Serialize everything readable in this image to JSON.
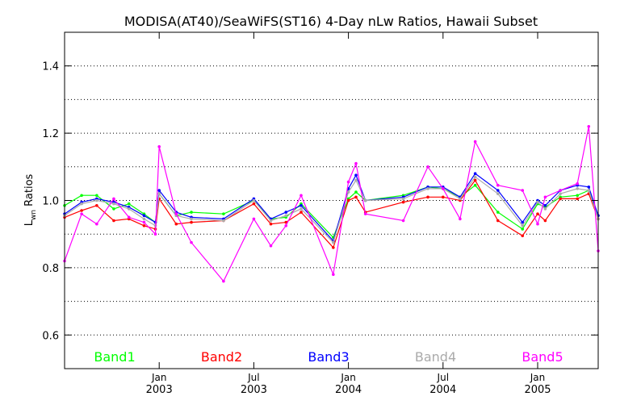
{
  "chart_data": {
    "type": "line",
    "title": "MODISA(AT40)/SeaWiFS(ST16) 4-Day nLw Ratios, Hawaii Subset",
    "ylabel_main": "L",
    "ylabel_sub": "wn",
    "ylabel_rest": " Ratios",
    "ylim": [
      0.5,
      1.5
    ],
    "yticks": [
      0.6,
      0.8,
      1.0,
      1.2,
      1.4
    ],
    "ytick_labels": [
      "0.6",
      "0.8",
      "1.0",
      "1.2",
      "1.4"
    ],
    "xlim": [
      2002.46,
      2005.28
    ],
    "xticks": [
      {
        "x": 2002.96,
        "line1": "Jan",
        "line2": "2003"
      },
      {
        "x": 2003.46,
        "line1": "Jul",
        "line2": "2003"
      },
      {
        "x": 2003.96,
        "line1": "Jan",
        "line2": "2004"
      },
      {
        "x": 2004.46,
        "line1": "Jul",
        "line2": "2004"
      },
      {
        "x": 2004.96,
        "line1": "Jan",
        "line2": "2005"
      }
    ],
    "grid": true,
    "legend_placement": "bottom-inside",
    "x": [
      2002.46,
      2002.55,
      2002.63,
      2002.72,
      2002.8,
      2002.88,
      2002.94,
      2002.96,
      2003.05,
      2003.13,
      2003.3,
      2003.46,
      2003.55,
      2003.63,
      2003.71,
      2003.88,
      2003.96,
      2004.0,
      2004.05,
      2004.25,
      2004.38,
      2004.46,
      2004.55,
      2004.63,
      2004.75,
      2004.88,
      2004.96,
      2005.0,
      2005.08,
      2005.17,
      2005.23,
      2005.28
    ],
    "series": [
      {
        "name": "Band1",
        "color": "#00ff00",
        "values": [
          0.985,
          1.015,
          1.015,
          0.975,
          0.99,
          0.96,
          0.935,
          1.02,
          0.955,
          0.965,
          0.96,
          1.0,
          0.945,
          0.95,
          0.99,
          0.89,
          1.005,
          1.025,
          1.0,
          1.015,
          1.04,
          1.035,
          1.01,
          1.045,
          0.965,
          0.915,
          0.99,
          0.98,
          1.01,
          1.015,
          1.03,
          0.955
        ]
      },
      {
        "name": "Band2",
        "color": "#ff0000",
        "values": [
          0.95,
          0.97,
          0.985,
          0.94,
          0.945,
          0.925,
          0.915,
          1.005,
          0.93,
          0.935,
          0.94,
          0.99,
          0.93,
          0.935,
          0.965,
          0.86,
          1.0,
          1.01,
          0.965,
          0.995,
          1.01,
          1.01,
          1.0,
          1.06,
          0.94,
          0.895,
          0.96,
          0.94,
          1.005,
          1.005,
          1.02,
          0.945
        ]
      },
      {
        "name": "Band3",
        "color": "#0000ff",
        "values": [
          0.96,
          0.995,
          1.005,
          0.995,
          0.98,
          0.955,
          0.935,
          1.03,
          0.965,
          0.95,
          0.945,
          1.005,
          0.945,
          0.965,
          0.985,
          0.88,
          1.035,
          1.075,
          1.0,
          1.01,
          1.04,
          1.04,
          1.01,
          1.08,
          1.03,
          0.935,
          1.0,
          0.985,
          1.03,
          1.045,
          1.04,
          0.955
        ]
      },
      {
        "name": "Band4",
        "color": "#aaaaaa",
        "values": [
          0.955,
          0.99,
          1.0,
          0.99,
          0.975,
          0.945,
          0.925,
          1.02,
          0.955,
          0.945,
          0.94,
          1.0,
          0.94,
          0.955,
          0.975,
          0.875,
          1.025,
          1.06,
          1.0,
          1.005,
          1.035,
          1.035,
          1.005,
          1.07,
          1.02,
          0.925,
          0.995,
          0.975,
          1.02,
          1.035,
          1.03,
          0.945
        ]
      },
      {
        "name": "Band5",
        "color": "#ff00ff",
        "values": [
          0.82,
          0.96,
          0.93,
          1.005,
          0.95,
          0.935,
          0.9,
          1.16,
          0.96,
          0.875,
          0.76,
          0.945,
          0.865,
          0.925,
          1.015,
          0.78,
          1.055,
          1.11,
          0.96,
          0.94,
          1.1,
          1.035,
          0.945,
          1.175,
          1.045,
          1.03,
          0.93,
          1.01,
          1.03,
          1.05,
          1.22,
          0.85
        ]
      }
    ]
  }
}
